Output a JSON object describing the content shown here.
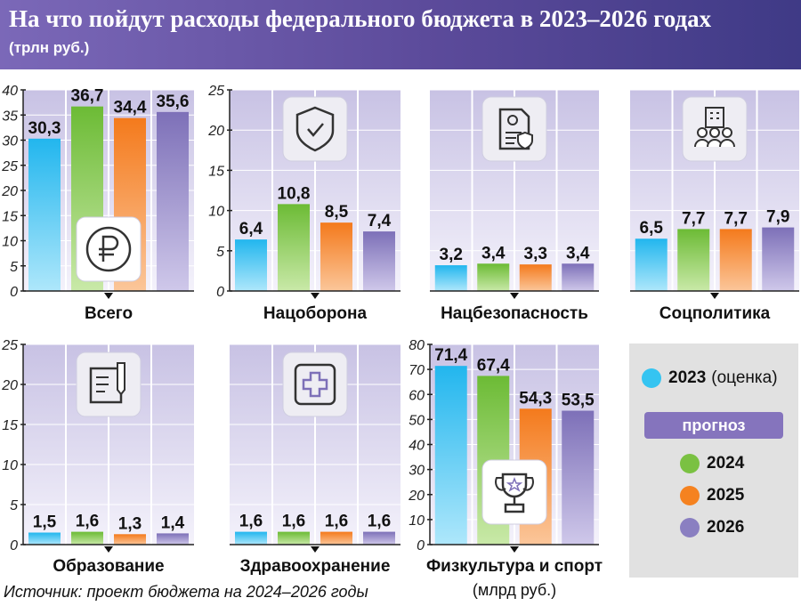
{
  "title": "На что пойдут расходы федерального бюджета в 2023–2026 годах",
  "subtitle": "(трлн руб.)",
  "source": "Источник: проект бюджета на 2024–2026 годы",
  "colors": {
    "2023": "#35c4f1",
    "2024": "#7ac142",
    "2025": "#f58220",
    "2026": "#8a7fc1"
  },
  "legend": {
    "year_2023": "2023",
    "note_2023": "(оценка)",
    "forecast": "прогноз",
    "year_2024": "2024",
    "year_2025": "2025",
    "year_2026": "2026"
  },
  "chart_data": [
    {
      "type": "bar",
      "title": "Всего",
      "icon": "ruble-icon",
      "categories": [
        "2023",
        "2024",
        "2025",
        "2026"
      ],
      "values": [
        30.3,
        36.7,
        34.4,
        35.6
      ],
      "labels": [
        "30,3",
        "36,7",
        "34,4",
        "35,6"
      ],
      "ylim": [
        0,
        40
      ],
      "yticks": [
        "0",
        "5",
        "10",
        "15",
        "20",
        "25",
        "30",
        "35",
        "40"
      ]
    },
    {
      "type": "bar",
      "title": "Нацоборона",
      "icon": "shield-icon",
      "categories": [
        "2023",
        "2024",
        "2025",
        "2026"
      ],
      "values": [
        6.4,
        10.8,
        8.5,
        7.4
      ],
      "labels": [
        "6,4",
        "10,8",
        "8,5",
        "7,4"
      ],
      "ylim": [
        0,
        25
      ],
      "yticks": [
        "0",
        "5",
        "10",
        "15",
        "20",
        "25"
      ]
    },
    {
      "type": "bar",
      "title": "Нацбезопасность",
      "icon": "security-document-icon",
      "categories": [
        "2023",
        "2024",
        "2025",
        "2026"
      ],
      "values": [
        3.2,
        3.4,
        3.3,
        3.4
      ],
      "labels": [
        "3,2",
        "3,4",
        "3,3",
        "3,4"
      ],
      "ylim": [
        0,
        25
      ],
      "yticks": []
    },
    {
      "type": "bar",
      "title": "Соцполитика",
      "icon": "social-people-icon",
      "categories": [
        "2023",
        "2024",
        "2025",
        "2026"
      ],
      "values": [
        6.5,
        7.7,
        7.7,
        7.9
      ],
      "labels": [
        "6,5",
        "7,7",
        "7,7",
        "7,9"
      ],
      "ylim": [
        0,
        25
      ],
      "yticks": []
    },
    {
      "type": "bar",
      "title": "Образование",
      "icon": "notebook-icon",
      "categories": [
        "2023",
        "2024",
        "2025",
        "2026"
      ],
      "values": [
        1.5,
        1.6,
        1.3,
        1.4
      ],
      "labels": [
        "1,5",
        "1,6",
        "1,3",
        "1,4"
      ],
      "ylim": [
        0,
        25
      ],
      "yticks": [
        "0",
        "5",
        "10",
        "15",
        "20",
        "25"
      ]
    },
    {
      "type": "bar",
      "title": "Здравоохранение",
      "icon": "medical-cross-icon",
      "categories": [
        "2023",
        "2024",
        "2025",
        "2026"
      ],
      "values": [
        1.6,
        1.6,
        1.6,
        1.6
      ],
      "labels": [
        "1,6",
        "1,6",
        "1,6",
        "1,6"
      ],
      "ylim": [
        0,
        25
      ],
      "yticks": []
    },
    {
      "type": "bar",
      "title": "Физкультура и спорт",
      "subtitle": "(млрд руб.)",
      "icon": "trophy-icon",
      "categories": [
        "2023",
        "2024",
        "2025",
        "2026"
      ],
      "values": [
        71.4,
        67.4,
        54.3,
        53.5
      ],
      "labels": [
        "71,4",
        "67,4",
        "54,3",
        "53,5"
      ],
      "ylim": [
        0,
        80
      ],
      "yticks": [
        "0",
        "10",
        "20",
        "30",
        "40",
        "50",
        "60",
        "70",
        "80"
      ]
    }
  ]
}
